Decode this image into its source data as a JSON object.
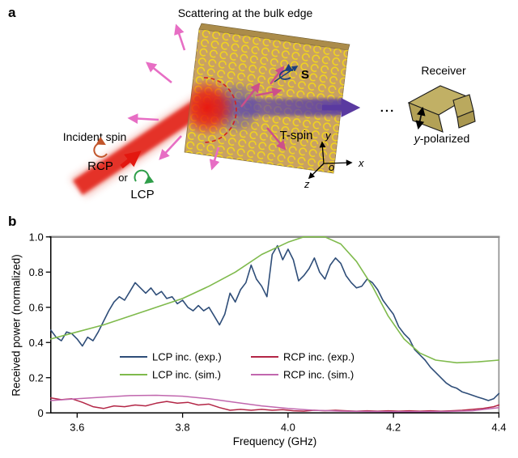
{
  "panel_a": {
    "label": "a",
    "title": "Scattering at the bulk edge",
    "incident_spin_label": "Incident spin",
    "rcp_label": "RCP",
    "or_label": "or",
    "lcp_label": "LCP",
    "t_spin_label": "T-spin",
    "s_label": "S",
    "dots": "...",
    "receiver_label": "Receiver",
    "y_polarized_italic": "y",
    "y_polarized_rest": "-polarized",
    "axis_x": "x",
    "axis_y": "y",
    "axis_z": "z",
    "axis_o": "o",
    "colors": {
      "rcp_text": "#c2552a",
      "lcp_text": "#2f9e49",
      "t_spin_text": "#2d3a96",
      "s_text": "#1d3f7d",
      "slab": "#c8a164",
      "spiral": "#f2d51c",
      "beam_red": "#e3170f",
      "beam_purple": "#5a3aa0",
      "scatter_pink": "#e76ec4",
      "scatter_rose": "#cd4f8a"
    }
  },
  "panel_b": {
    "label": "b"
  },
  "chart_data": {
    "type": "line",
    "title": "",
    "xlabel": "Frequency (GHz)",
    "ylabel": "Received power (normalized)",
    "xlim": [
      3.55,
      4.4
    ],
    "ylim": [
      0,
      1.0
    ],
    "grid": false,
    "frame_color": "#8c8c8c",
    "axis_color": "#000000",
    "legend_position": "inside lower-center, two columns",
    "x_ticks": [
      3.6,
      3.8,
      4.0,
      4.2,
      4.4
    ],
    "x_tick_labels": [
      "3.6",
      "3.8",
      "4.0",
      "4.2",
      "4.4"
    ],
    "y_ticks": [
      0,
      0.2,
      0.4,
      0.6,
      0.8,
      1.0
    ],
    "y_tick_labels": [
      "0",
      "0.2",
      "0.4",
      "0.6",
      "0.8",
      "1.0"
    ],
    "series": [
      {
        "name": "LCP inc. (exp.)",
        "color": "#2e4d78",
        "width": 1.6,
        "x": [
          3.55,
          3.56,
          3.57,
          3.58,
          3.59,
          3.6,
          3.61,
          3.62,
          3.63,
          3.64,
          3.65,
          3.66,
          3.67,
          3.68,
          3.69,
          3.7,
          3.71,
          3.72,
          3.73,
          3.74,
          3.75,
          3.76,
          3.77,
          3.78,
          3.79,
          3.8,
          3.81,
          3.82,
          3.83,
          3.84,
          3.85,
          3.86,
          3.87,
          3.88,
          3.89,
          3.9,
          3.91,
          3.92,
          3.93,
          3.94,
          3.95,
          3.96,
          3.97,
          3.98,
          3.99,
          4.0,
          4.01,
          4.02,
          4.03,
          4.04,
          4.05,
          4.06,
          4.07,
          4.08,
          4.09,
          4.1,
          4.11,
          4.12,
          4.13,
          4.14,
          4.15,
          4.16,
          4.17,
          4.18,
          4.19,
          4.2,
          4.21,
          4.22,
          4.23,
          4.24,
          4.25,
          4.26,
          4.27,
          4.28,
          4.29,
          4.3,
          4.31,
          4.32,
          4.33,
          4.34,
          4.35,
          4.36,
          4.37,
          4.38,
          4.39,
          4.4
        ],
        "y": [
          0.47,
          0.43,
          0.41,
          0.46,
          0.45,
          0.42,
          0.38,
          0.43,
          0.41,
          0.46,
          0.52,
          0.58,
          0.63,
          0.66,
          0.64,
          0.69,
          0.74,
          0.71,
          0.68,
          0.71,
          0.67,
          0.69,
          0.65,
          0.66,
          0.62,
          0.64,
          0.6,
          0.58,
          0.61,
          0.58,
          0.6,
          0.55,
          0.5,
          0.56,
          0.68,
          0.63,
          0.7,
          0.74,
          0.84,
          0.76,
          0.72,
          0.66,
          0.9,
          0.95,
          0.87,
          0.93,
          0.87,
          0.75,
          0.78,
          0.82,
          0.88,
          0.8,
          0.76,
          0.84,
          0.88,
          0.85,
          0.78,
          0.74,
          0.71,
          0.72,
          0.76,
          0.74,
          0.7,
          0.64,
          0.6,
          0.56,
          0.49,
          0.45,
          0.42,
          0.36,
          0.33,
          0.3,
          0.26,
          0.23,
          0.2,
          0.17,
          0.15,
          0.14,
          0.12,
          0.11,
          0.1,
          0.09,
          0.08,
          0.07,
          0.08,
          0.11
        ]
      },
      {
        "name": "LCP inc. (sim.)",
        "color": "#7fba4c",
        "width": 1.6,
        "x": [
          3.55,
          3.6,
          3.65,
          3.7,
          3.75,
          3.8,
          3.85,
          3.9,
          3.95,
          4.0,
          4.03,
          4.07,
          4.1,
          4.13,
          4.16,
          4.19,
          4.22,
          4.25,
          4.28,
          4.32,
          4.36,
          4.4
        ],
        "y": [
          0.42,
          0.46,
          0.5,
          0.55,
          0.6,
          0.65,
          0.72,
          0.8,
          0.9,
          0.97,
          1.0,
          1.0,
          0.96,
          0.86,
          0.72,
          0.55,
          0.42,
          0.34,
          0.3,
          0.285,
          0.29,
          0.3
        ]
      },
      {
        "name": "RCP inc. (exp.)",
        "color": "#b32646",
        "width": 1.5,
        "x": [
          3.55,
          3.57,
          3.59,
          3.61,
          3.63,
          3.65,
          3.67,
          3.69,
          3.71,
          3.73,
          3.75,
          3.77,
          3.79,
          3.81,
          3.83,
          3.85,
          3.87,
          3.89,
          3.91,
          3.93,
          3.95,
          3.97,
          3.99,
          4.01,
          4.03,
          4.05,
          4.07,
          4.09,
          4.11,
          4.13,
          4.15,
          4.17,
          4.19,
          4.21,
          4.23,
          4.25,
          4.27,
          4.29,
          4.31,
          4.33,
          4.35,
          4.37,
          4.39,
          4.4
        ],
        "y": [
          0.085,
          0.075,
          0.08,
          0.06,
          0.035,
          0.025,
          0.04,
          0.035,
          0.045,
          0.04,
          0.055,
          0.065,
          0.055,
          0.06,
          0.045,
          0.05,
          0.03,
          0.015,
          0.02,
          0.015,
          0.02,
          0.015,
          0.018,
          0.012,
          0.01,
          0.015,
          0.012,
          0.015,
          0.012,
          0.01,
          0.012,
          0.01,
          0.012,
          0.01,
          0.012,
          0.01,
          0.012,
          0.01,
          0.012,
          0.015,
          0.02,
          0.025,
          0.035,
          0.045
        ]
      },
      {
        "name": "RCP inc. (sim.)",
        "color": "#c167ae",
        "width": 1.5,
        "x": [
          3.55,
          3.6,
          3.65,
          3.7,
          3.75,
          3.8,
          3.85,
          3.9,
          3.95,
          4.0,
          4.05,
          4.1,
          4.15,
          4.2,
          4.25,
          4.3,
          4.35,
          4.4
        ],
        "y": [
          0.07,
          0.08,
          0.09,
          0.098,
          0.1,
          0.095,
          0.08,
          0.06,
          0.04,
          0.025,
          0.015,
          0.01,
          0.008,
          0.007,
          0.007,
          0.008,
          0.012,
          0.03
        ]
      }
    ]
  }
}
